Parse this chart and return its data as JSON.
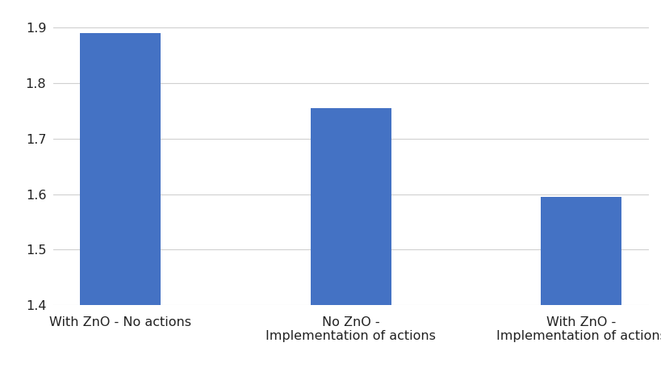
{
  "categories": [
    "With ZnO - No actions",
    "No ZnO -\nImplementation of actions",
    "With ZnO -\nImplementation of actions"
  ],
  "values": [
    1.89,
    1.755,
    1.595
  ],
  "bar_color": "#4472C4",
  "ylim": [
    1.4,
    1.93
  ],
  "yticks": [
    1.4,
    1.5,
    1.6,
    1.7,
    1.8,
    1.9
  ],
  "bar_width": 0.35,
  "background_color": "#ffffff",
  "grid_color": "#d0d0d0",
  "tick_label_fontsize": 11.5,
  "axis_label_color": "#222222"
}
